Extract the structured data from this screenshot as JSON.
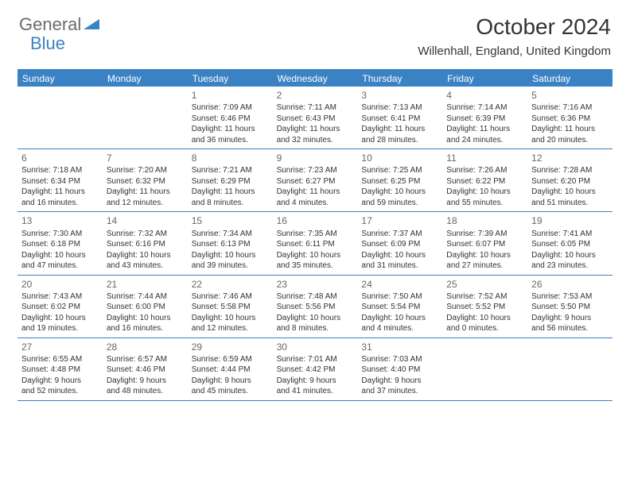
{
  "logo": {
    "main": "General",
    "accent": "Blue"
  },
  "title": "October 2024",
  "location": "Willenhall, England, United Kingdom",
  "colors": {
    "brand": "#3b82c4",
    "text": "#333333",
    "logo_gray": "#6b6b6b",
    "background": "#ffffff"
  },
  "day_headers": [
    "Sunday",
    "Monday",
    "Tuesday",
    "Wednesday",
    "Thursday",
    "Friday",
    "Saturday"
  ],
  "weeks": [
    [
      {
        "empty": true
      },
      {
        "empty": true
      },
      {
        "num": "1",
        "sunrise": "Sunrise: 7:09 AM",
        "sunset": "Sunset: 6:46 PM",
        "day1": "Daylight: 11 hours",
        "day2": "and 36 minutes."
      },
      {
        "num": "2",
        "sunrise": "Sunrise: 7:11 AM",
        "sunset": "Sunset: 6:43 PM",
        "day1": "Daylight: 11 hours",
        "day2": "and 32 minutes."
      },
      {
        "num": "3",
        "sunrise": "Sunrise: 7:13 AM",
        "sunset": "Sunset: 6:41 PM",
        "day1": "Daylight: 11 hours",
        "day2": "and 28 minutes."
      },
      {
        "num": "4",
        "sunrise": "Sunrise: 7:14 AM",
        "sunset": "Sunset: 6:39 PM",
        "day1": "Daylight: 11 hours",
        "day2": "and 24 minutes."
      },
      {
        "num": "5",
        "sunrise": "Sunrise: 7:16 AM",
        "sunset": "Sunset: 6:36 PM",
        "day1": "Daylight: 11 hours",
        "day2": "and 20 minutes."
      }
    ],
    [
      {
        "num": "6",
        "sunrise": "Sunrise: 7:18 AM",
        "sunset": "Sunset: 6:34 PM",
        "day1": "Daylight: 11 hours",
        "day2": "and 16 minutes."
      },
      {
        "num": "7",
        "sunrise": "Sunrise: 7:20 AM",
        "sunset": "Sunset: 6:32 PM",
        "day1": "Daylight: 11 hours",
        "day2": "and 12 minutes."
      },
      {
        "num": "8",
        "sunrise": "Sunrise: 7:21 AM",
        "sunset": "Sunset: 6:29 PM",
        "day1": "Daylight: 11 hours",
        "day2": "and 8 minutes."
      },
      {
        "num": "9",
        "sunrise": "Sunrise: 7:23 AM",
        "sunset": "Sunset: 6:27 PM",
        "day1": "Daylight: 11 hours",
        "day2": "and 4 minutes."
      },
      {
        "num": "10",
        "sunrise": "Sunrise: 7:25 AM",
        "sunset": "Sunset: 6:25 PM",
        "day1": "Daylight: 10 hours",
        "day2": "and 59 minutes."
      },
      {
        "num": "11",
        "sunrise": "Sunrise: 7:26 AM",
        "sunset": "Sunset: 6:22 PM",
        "day1": "Daylight: 10 hours",
        "day2": "and 55 minutes."
      },
      {
        "num": "12",
        "sunrise": "Sunrise: 7:28 AM",
        "sunset": "Sunset: 6:20 PM",
        "day1": "Daylight: 10 hours",
        "day2": "and 51 minutes."
      }
    ],
    [
      {
        "num": "13",
        "sunrise": "Sunrise: 7:30 AM",
        "sunset": "Sunset: 6:18 PM",
        "day1": "Daylight: 10 hours",
        "day2": "and 47 minutes."
      },
      {
        "num": "14",
        "sunrise": "Sunrise: 7:32 AM",
        "sunset": "Sunset: 6:16 PM",
        "day1": "Daylight: 10 hours",
        "day2": "and 43 minutes."
      },
      {
        "num": "15",
        "sunrise": "Sunrise: 7:34 AM",
        "sunset": "Sunset: 6:13 PM",
        "day1": "Daylight: 10 hours",
        "day2": "and 39 minutes."
      },
      {
        "num": "16",
        "sunrise": "Sunrise: 7:35 AM",
        "sunset": "Sunset: 6:11 PM",
        "day1": "Daylight: 10 hours",
        "day2": "and 35 minutes."
      },
      {
        "num": "17",
        "sunrise": "Sunrise: 7:37 AM",
        "sunset": "Sunset: 6:09 PM",
        "day1": "Daylight: 10 hours",
        "day2": "and 31 minutes."
      },
      {
        "num": "18",
        "sunrise": "Sunrise: 7:39 AM",
        "sunset": "Sunset: 6:07 PM",
        "day1": "Daylight: 10 hours",
        "day2": "and 27 minutes."
      },
      {
        "num": "19",
        "sunrise": "Sunrise: 7:41 AM",
        "sunset": "Sunset: 6:05 PM",
        "day1": "Daylight: 10 hours",
        "day2": "and 23 minutes."
      }
    ],
    [
      {
        "num": "20",
        "sunrise": "Sunrise: 7:43 AM",
        "sunset": "Sunset: 6:02 PM",
        "day1": "Daylight: 10 hours",
        "day2": "and 19 minutes."
      },
      {
        "num": "21",
        "sunrise": "Sunrise: 7:44 AM",
        "sunset": "Sunset: 6:00 PM",
        "day1": "Daylight: 10 hours",
        "day2": "and 16 minutes."
      },
      {
        "num": "22",
        "sunrise": "Sunrise: 7:46 AM",
        "sunset": "Sunset: 5:58 PM",
        "day1": "Daylight: 10 hours",
        "day2": "and 12 minutes."
      },
      {
        "num": "23",
        "sunrise": "Sunrise: 7:48 AM",
        "sunset": "Sunset: 5:56 PM",
        "day1": "Daylight: 10 hours",
        "day2": "and 8 minutes."
      },
      {
        "num": "24",
        "sunrise": "Sunrise: 7:50 AM",
        "sunset": "Sunset: 5:54 PM",
        "day1": "Daylight: 10 hours",
        "day2": "and 4 minutes."
      },
      {
        "num": "25",
        "sunrise": "Sunrise: 7:52 AM",
        "sunset": "Sunset: 5:52 PM",
        "day1": "Daylight: 10 hours",
        "day2": "and 0 minutes."
      },
      {
        "num": "26",
        "sunrise": "Sunrise: 7:53 AM",
        "sunset": "Sunset: 5:50 PM",
        "day1": "Daylight: 9 hours",
        "day2": "and 56 minutes."
      }
    ],
    [
      {
        "num": "27",
        "sunrise": "Sunrise: 6:55 AM",
        "sunset": "Sunset: 4:48 PM",
        "day1": "Daylight: 9 hours",
        "day2": "and 52 minutes."
      },
      {
        "num": "28",
        "sunrise": "Sunrise: 6:57 AM",
        "sunset": "Sunset: 4:46 PM",
        "day1": "Daylight: 9 hours",
        "day2": "and 48 minutes."
      },
      {
        "num": "29",
        "sunrise": "Sunrise: 6:59 AM",
        "sunset": "Sunset: 4:44 PM",
        "day1": "Daylight: 9 hours",
        "day2": "and 45 minutes."
      },
      {
        "num": "30",
        "sunrise": "Sunrise: 7:01 AM",
        "sunset": "Sunset: 4:42 PM",
        "day1": "Daylight: 9 hours",
        "day2": "and 41 minutes."
      },
      {
        "num": "31",
        "sunrise": "Sunrise: 7:03 AM",
        "sunset": "Sunset: 4:40 PM",
        "day1": "Daylight: 9 hours",
        "day2": "and 37 minutes."
      },
      {
        "empty": true
      },
      {
        "empty": true
      }
    ]
  ]
}
